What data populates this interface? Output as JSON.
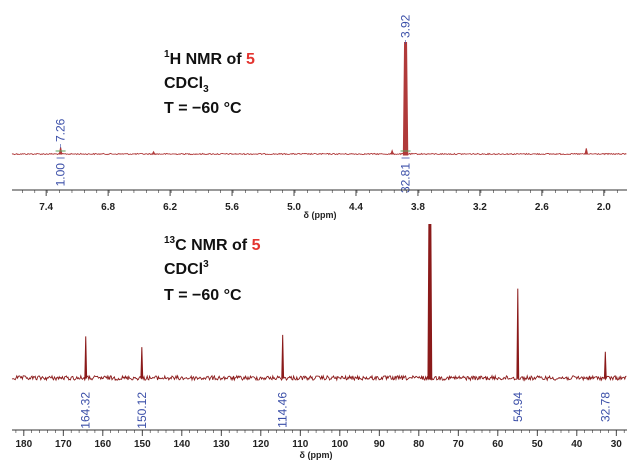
{
  "chart_data": [
    {
      "type": "line",
      "title_parts": [
        {
          "text": "1",
          "sup": true
        },
        {
          "text": "H NMR of "
        },
        {
          "text": "5",
          "red": true
        }
      ],
      "solvent_parts": [
        {
          "text": "CDCl"
        },
        {
          "text": "3",
          "sub": true
        }
      ],
      "temperature": "T = −60 °C",
      "xlabel": "δ (ppm)",
      "xlim": [
        7.75,
        1.65
      ],
      "ticks": [
        "7.4",
        "6.8",
        "6.2",
        "5.6",
        "5.0",
        "4.4",
        "3.8",
        "3.2",
        "2.6",
        "2.0"
      ],
      "tick_values": [
        7.4,
        6.8,
        6.2,
        5.6,
        5.0,
        4.4,
        3.8,
        3.2,
        2.6,
        2.0
      ],
      "peaks": [
        {
          "x": 7.26,
          "height": 0.06,
          "label": "7.26"
        },
        {
          "x": 3.92,
          "height": 1.0,
          "label": "3.92"
        },
        {
          "x": 2.17,
          "height": 0.05,
          "label": ""
        },
        {
          "x": 4.05,
          "height": 0.03,
          "label": ""
        },
        {
          "x": 6.36,
          "height": 0.02,
          "label": ""
        }
      ],
      "integrals": [
        {
          "x": 7.26,
          "value": "1.00"
        },
        {
          "x": 3.92,
          "value": "32.81"
        }
      ],
      "line_color": "#b03a3a",
      "integral_color": "#5aa05a",
      "label_color": "#3b4fa8"
    },
    {
      "type": "line",
      "title_parts": [
        {
          "text": "13",
          "sup": true
        },
        {
          "text": "C NMR of "
        },
        {
          "text": "5",
          "red": true
        }
      ],
      "solvent_parts": [
        {
          "text": "CDCl"
        },
        {
          "text": "3",
          "sup": true
        }
      ],
      "temperature": "T = −60 °C",
      "xlabel": "δ (ppm)",
      "xlim": [
        184,
        24
      ],
      "ticks": [
        "180",
        "170",
        "160",
        "150",
        "140",
        "130",
        "120",
        "110",
        "100",
        "90",
        "80",
        "70",
        "60",
        "50",
        "40",
        "30"
      ],
      "tick_values": [
        180,
        170,
        160,
        150,
        140,
        130,
        120,
        110,
        100,
        90,
        80,
        70,
        60,
        50,
        40,
        30
      ],
      "peaks": [
        {
          "x": 164.32,
          "height": 0.27,
          "label": "164.32"
        },
        {
          "x": 150.12,
          "height": 0.2,
          "label": "150.12"
        },
        {
          "x": 114.46,
          "height": 0.28,
          "label": "114.46"
        },
        {
          "x": 77.2,
          "height": 1.0,
          "label": ""
        },
        {
          "x": 54.94,
          "height": 0.58,
          "label": "54.94"
        },
        {
          "x": 32.78,
          "height": 0.17,
          "label": "32.78"
        }
      ],
      "line_color": "#8b1a1a",
      "label_color": "#3b4fa8"
    }
  ]
}
